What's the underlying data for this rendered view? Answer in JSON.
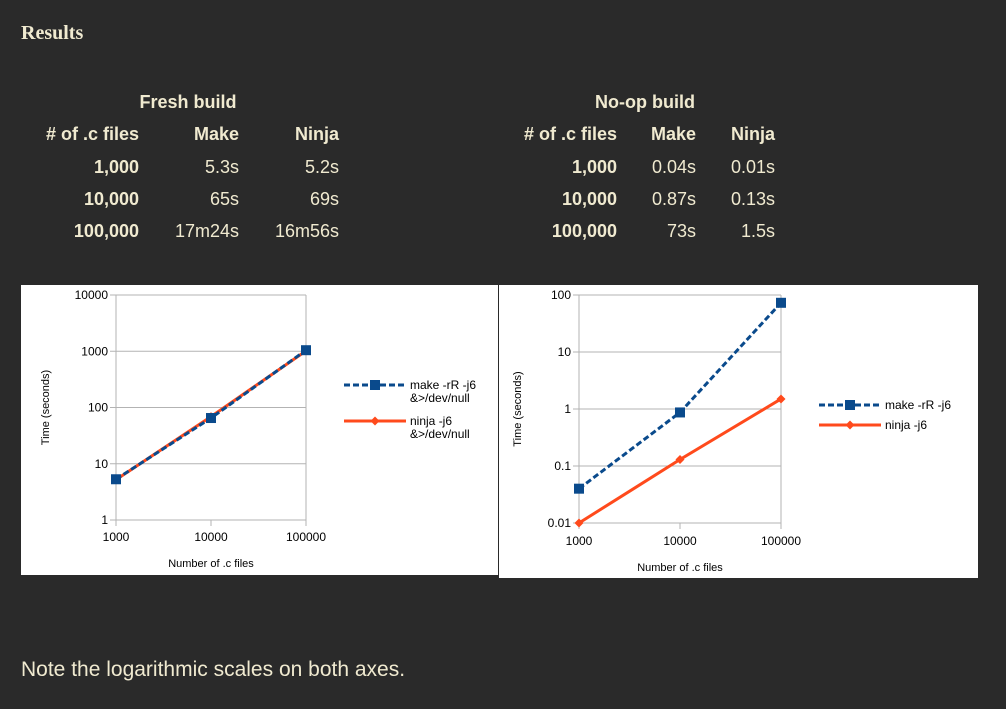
{
  "heading": "Results",
  "fresh_table": {
    "title": "Fresh build",
    "headers": [
      "# of .c files",
      "Make",
      "Ninja"
    ],
    "rows": [
      [
        "1,000",
        "5.3s",
        "5.2s"
      ],
      [
        "10,000",
        "65s",
        "69s"
      ],
      [
        "100,000",
        "17m24s",
        "16m56s"
      ]
    ]
  },
  "noop_table": {
    "title": "No-op build",
    "headers": [
      "# of .c files",
      "Make",
      "Ninja"
    ],
    "rows": [
      [
        "1,000",
        "0.04s",
        "0.01s"
      ],
      [
        "10,000",
        "0.87s",
        "0.13s"
      ],
      [
        "100,000",
        "73s",
        "1.5s"
      ]
    ]
  },
  "chart_data": [
    {
      "type": "line",
      "title": "",
      "xlabel": "Number of .c files",
      "ylabel": "Time (seconds)",
      "x_scale": "log",
      "y_scale": "log",
      "xlim": [
        1000,
        100000
      ],
      "ylim": [
        1,
        10000
      ],
      "x_ticks": [
        1000,
        10000,
        100000
      ],
      "x_tick_labels": [
        "1000",
        "10000",
        "100000"
      ],
      "y_ticks": [
        1,
        10,
        100,
        1000,
        10000
      ],
      "y_tick_labels": [
        "1",
        "10",
        "100",
        "1000",
        "10000"
      ],
      "grid": true,
      "legend": "right",
      "x": [
        1000,
        10000,
        100000
      ],
      "series": [
        {
          "name_lines": [
            "make -rR -j6",
            "&>/dev/null"
          ],
          "values": [
            5.3,
            65,
            1044
          ],
          "color": "#0a4a8c",
          "dash": "dashed",
          "marker": "square"
        },
        {
          "name_lines": [
            "ninja -j6",
            "&>/dev/null"
          ],
          "values": [
            5.2,
            69,
            1016
          ],
          "color": "#ff4a1c",
          "dash": "solid",
          "marker": "diamond"
        }
      ]
    },
    {
      "type": "line",
      "title": "",
      "xlabel": "Number of .c files",
      "ylabel": "Time (seconds)",
      "x_scale": "log",
      "y_scale": "log",
      "xlim": [
        1000,
        100000
      ],
      "ylim": [
        0.01,
        100
      ],
      "x_ticks": [
        1000,
        10000,
        100000
      ],
      "x_tick_labels": [
        "1000",
        "10000",
        "100000"
      ],
      "y_ticks": [
        0.01,
        0.1,
        1,
        10,
        100
      ],
      "y_tick_labels": [
        "0.01",
        "0.1",
        "1",
        "10",
        "100"
      ],
      "grid": true,
      "legend": "right",
      "x": [
        1000,
        10000,
        100000
      ],
      "series": [
        {
          "name_lines": [
            "make -rR -j6"
          ],
          "values": [
            0.04,
            0.87,
            73
          ],
          "color": "#0a4a8c",
          "dash": "dashed",
          "marker": "square"
        },
        {
          "name_lines": [
            "ninja -j6"
          ],
          "values": [
            0.01,
            0.13,
            1.5
          ],
          "color": "#ff4a1c",
          "dash": "solid",
          "marker": "diamond"
        }
      ]
    }
  ],
  "note": "Note the logarithmic scales on both axes."
}
